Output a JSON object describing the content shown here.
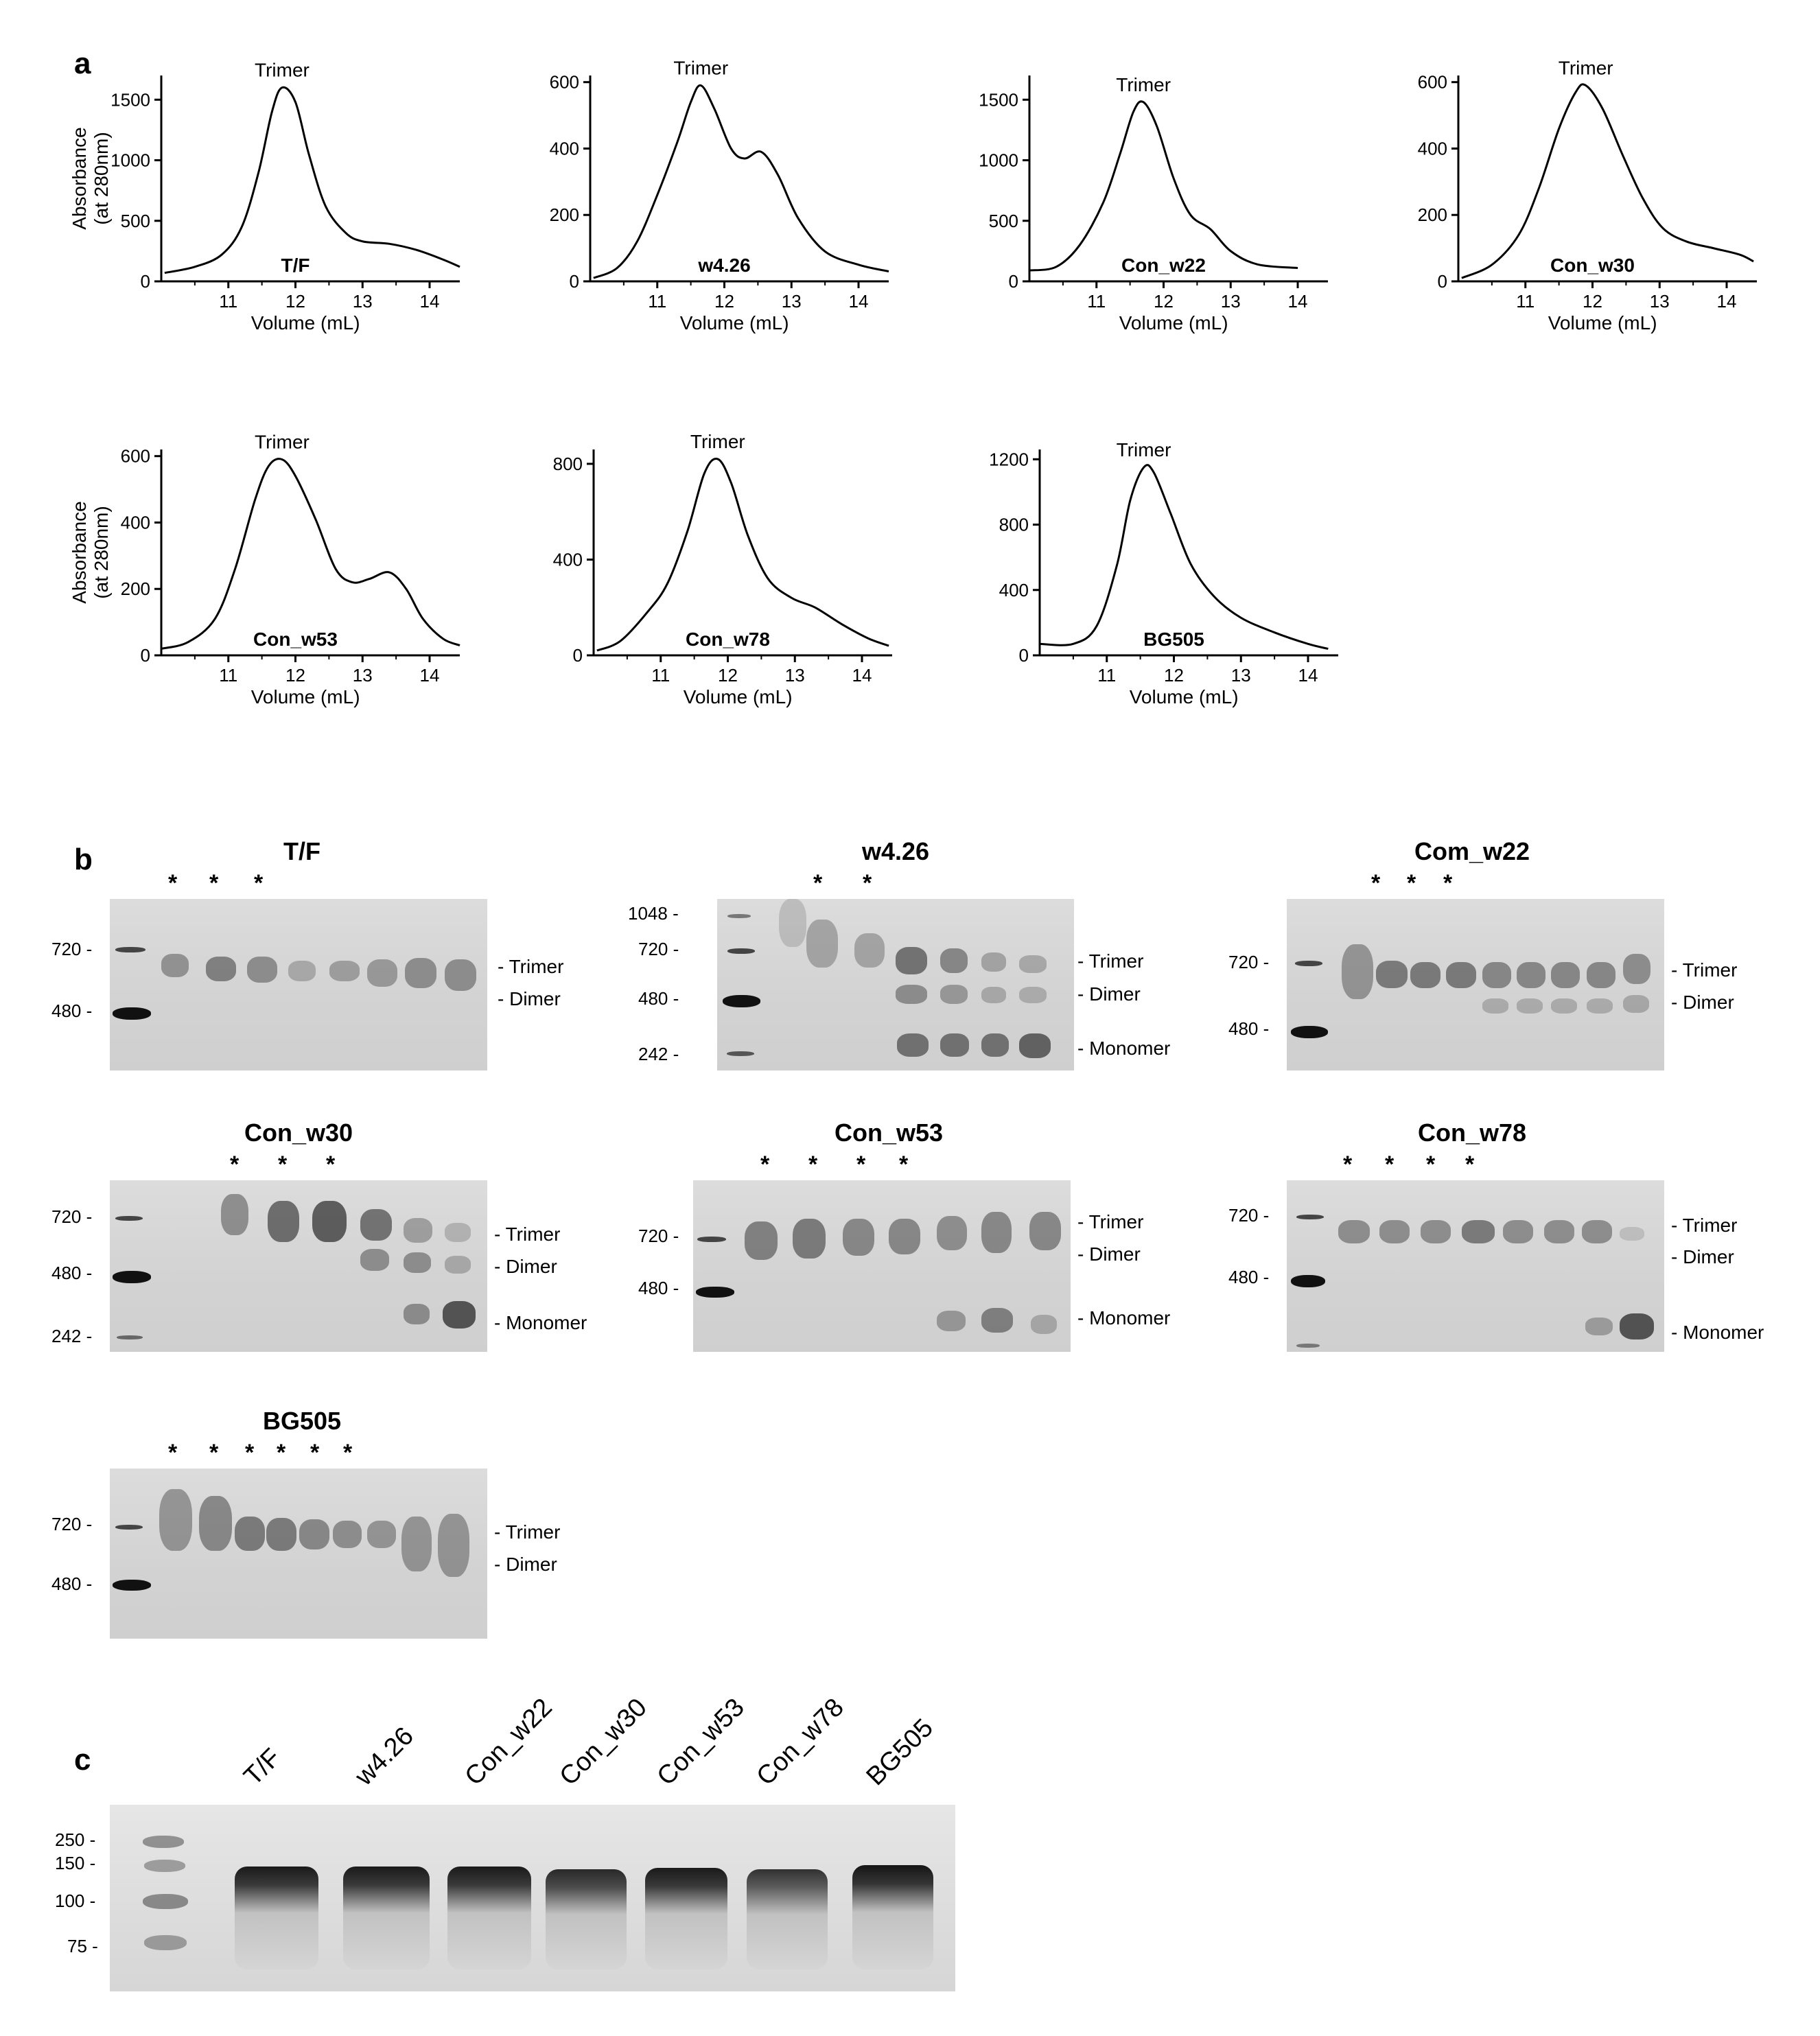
{
  "panels": {
    "a": "a",
    "b": "b",
    "c": "c"
  },
  "sec_charts": [
    {
      "id": "tf",
      "label": "T/F",
      "peak_label": "Trimer",
      "xlabel": "Volume (mL)",
      "ylabel1": "Absorbance",
      "ylabel2": "(at 280nm)",
      "yticks": [
        0,
        500,
        1000,
        1500
      ],
      "ymax": 1700,
      "xticks": [
        11,
        12,
        13,
        14
      ],
      "points": [
        [
          10.05,
          70
        ],
        [
          10.5,
          120
        ],
        [
          10.9,
          220
        ],
        [
          11.2,
          450
        ],
        [
          11.45,
          900
        ],
        [
          11.65,
          1400
        ],
        [
          11.8,
          1600
        ],
        [
          12.0,
          1480
        ],
        [
          12.2,
          1050
        ],
        [
          12.45,
          620
        ],
        [
          12.75,
          400
        ],
        [
          13.0,
          330
        ],
        [
          13.4,
          310
        ],
        [
          13.8,
          260
        ],
        [
          14.2,
          180
        ],
        [
          14.45,
          120
        ]
      ]
    },
    {
      "id": "w426",
      "label": "w4.26",
      "peak_label": "Trimer",
      "xlabel": "Volume (mL)",
      "ylabel1": "",
      "ylabel2": "",
      "yticks": [
        0,
        200,
        400,
        600
      ],
      "ymax": 620,
      "xticks": [
        11,
        12,
        13,
        14
      ],
      "points": [
        [
          10.05,
          10
        ],
        [
          10.4,
          40
        ],
        [
          10.7,
          120
        ],
        [
          11.0,
          260
        ],
        [
          11.3,
          420
        ],
        [
          11.5,
          540
        ],
        [
          11.65,
          590
        ],
        [
          11.85,
          520
        ],
        [
          12.1,
          400
        ],
        [
          12.3,
          370
        ],
        [
          12.55,
          390
        ],
        [
          12.8,
          320
        ],
        [
          13.1,
          190
        ],
        [
          13.5,
          90
        ],
        [
          14.0,
          50
        ],
        [
          14.45,
          30
        ]
      ]
    },
    {
      "id": "w22",
      "label": "Con_w22",
      "peak_label": "Trimer",
      "xlabel": "Volume (mL)",
      "ylabel1": "",
      "ylabel2": "",
      "yticks": [
        0,
        500,
        1000,
        1500
      ],
      "ymax": 1700,
      "xticks": [
        11,
        12,
        13,
        14
      ],
      "points": [
        [
          10.0,
          90
        ],
        [
          10.4,
          120
        ],
        [
          10.75,
          300
        ],
        [
          11.1,
          650
        ],
        [
          11.35,
          1050
        ],
        [
          11.55,
          1400
        ],
        [
          11.7,
          1480
        ],
        [
          11.9,
          1280
        ],
        [
          12.15,
          850
        ],
        [
          12.4,
          550
        ],
        [
          12.7,
          430
        ],
        [
          13.0,
          250
        ],
        [
          13.4,
          140
        ],
        [
          14.0,
          110
        ]
      ]
    },
    {
      "id": "w30",
      "label": "Con_w30",
      "peak_label": "Trimer",
      "xlabel": "Volume (mL)",
      "ylabel1": "",
      "ylabel2": "",
      "yticks": [
        0,
        200,
        400,
        600
      ],
      "ymax": 620,
      "xticks": [
        11,
        12,
        13,
        14
      ],
      "points": [
        [
          10.05,
          10
        ],
        [
          10.5,
          50
        ],
        [
          10.9,
          140
        ],
        [
          11.2,
          280
        ],
        [
          11.5,
          460
        ],
        [
          11.75,
          570
        ],
        [
          11.9,
          590
        ],
        [
          12.15,
          520
        ],
        [
          12.45,
          380
        ],
        [
          12.75,
          250
        ],
        [
          13.05,
          160
        ],
        [
          13.4,
          120
        ],
        [
          13.8,
          100
        ],
        [
          14.2,
          80
        ],
        [
          14.4,
          60
        ]
      ]
    },
    {
      "id": "w53",
      "label": "Con_w53",
      "peak_label": "Trimer",
      "xlabel": "Volume (mL)",
      "ylabel1": "Absorbance",
      "ylabel2": "(at 280nm)",
      "yticks": [
        0,
        200,
        400,
        600
      ],
      "ymax": 620,
      "xticks": [
        11,
        12,
        13,
        14
      ],
      "points": [
        [
          10.0,
          20
        ],
        [
          10.4,
          40
        ],
        [
          10.8,
          110
        ],
        [
          11.1,
          260
        ],
        [
          11.4,
          470
        ],
        [
          11.6,
          570
        ],
        [
          11.8,
          590
        ],
        [
          12.0,
          540
        ],
        [
          12.3,
          410
        ],
        [
          12.6,
          260
        ],
        [
          12.85,
          220
        ],
        [
          13.1,
          230
        ],
        [
          13.4,
          250
        ],
        [
          13.65,
          200
        ],
        [
          13.9,
          110
        ],
        [
          14.2,
          50
        ],
        [
          14.45,
          30
        ]
      ]
    },
    {
      "id": "w78",
      "label": "Con_w78",
      "peak_label": "Trimer",
      "xlabel": "Volume (mL)",
      "ylabel1": "",
      "ylabel2": "",
      "yticks": [
        0,
        400,
        800
      ],
      "ymax": 860,
      "xticks": [
        11,
        12,
        13,
        14
      ],
      "points": [
        [
          10.05,
          20
        ],
        [
          10.4,
          60
        ],
        [
          10.8,
          180
        ],
        [
          11.1,
          300
        ],
        [
          11.4,
          520
        ],
        [
          11.65,
          760
        ],
        [
          11.85,
          820
        ],
        [
          12.05,
          720
        ],
        [
          12.3,
          500
        ],
        [
          12.6,
          320
        ],
        [
          12.95,
          240
        ],
        [
          13.3,
          200
        ],
        [
          13.7,
          130
        ],
        [
          14.1,
          70
        ],
        [
          14.4,
          40
        ]
      ]
    },
    {
      "id": "bg505",
      "label": "BG505",
      "peak_label": "Trimer",
      "xlabel": "Volume (mL)",
      "ylabel1": "",
      "ylabel2": "",
      "yticks": [
        0,
        400,
        800,
        1200
      ],
      "ymax": 1260,
      "xticks": [
        11,
        12,
        13,
        14
      ],
      "points": [
        [
          10.0,
          70
        ],
        [
          10.5,
          70
        ],
        [
          10.85,
          180
        ],
        [
          11.15,
          550
        ],
        [
          11.35,
          950
        ],
        [
          11.55,
          1150
        ],
        [
          11.7,
          1120
        ],
        [
          11.95,
          870
        ],
        [
          12.25,
          560
        ],
        [
          12.6,
          360
        ],
        [
          13.0,
          230
        ],
        [
          13.5,
          140
        ],
        [
          14.0,
          70
        ],
        [
          14.3,
          40
        ]
      ]
    }
  ],
  "gels_b": [
    {
      "id": "tf",
      "title": "T/F",
      "stars": [
        "*",
        "*",
        "*"
      ],
      "mw": [
        "720 -",
        "480 -"
      ],
      "sides": [
        "- Trimer",
        "- Dimer"
      ]
    },
    {
      "id": "w426",
      "title": "w4.26",
      "stars": [
        "*",
        "*"
      ],
      "mw": [
        "1048 -",
        "720 -",
        "480 -",
        "242 -"
      ],
      "sides": [
        "- Trimer",
        "- Dimer",
        "- Monomer"
      ]
    },
    {
      "id": "w22",
      "title": "Com_w22",
      "stars": [
        "*",
        "*",
        "*"
      ],
      "mw": [
        "720 -",
        "480 -"
      ],
      "sides": [
        "- Trimer",
        "- Dimer"
      ]
    },
    {
      "id": "w30",
      "title": "Con_w30",
      "stars": [
        "*",
        "*",
        "*"
      ],
      "mw": [
        "720 -",
        "480 -",
        "242 -"
      ],
      "sides": [
        "- Trimer",
        "- Dimer",
        "- Monomer"
      ]
    },
    {
      "id": "w53",
      "title": "Con_w53",
      "stars": [
        "*",
        "*",
        "*",
        "*"
      ],
      "mw": [
        "720 -",
        "480 -"
      ],
      "sides": [
        "- Trimer",
        "- Dimer",
        "- Monomer"
      ]
    },
    {
      "id": "w78",
      "title": "Con_w78",
      "stars": [
        "*",
        "*",
        "*",
        "*"
      ],
      "mw": [
        "720 -",
        "480 -"
      ],
      "sides": [
        "- Trimer",
        "- Dimer",
        "- Monomer"
      ]
    },
    {
      "id": "bg505",
      "title": "BG505",
      "stars": [
        "*",
        "*",
        "*",
        "*",
        "*",
        "*"
      ],
      "mw": [
        "720 -",
        "480 -"
      ],
      "sides": [
        "- Trimer",
        "- Dimer"
      ]
    }
  ],
  "gel_c": {
    "lanes": [
      "T/F",
      "w4.26",
      "Con_w22",
      "Con_w30",
      "Con_w53",
      "Con_w78",
      "BG505"
    ],
    "mw": [
      "250 -",
      "150 -",
      "100 -",
      "75 -"
    ]
  }
}
